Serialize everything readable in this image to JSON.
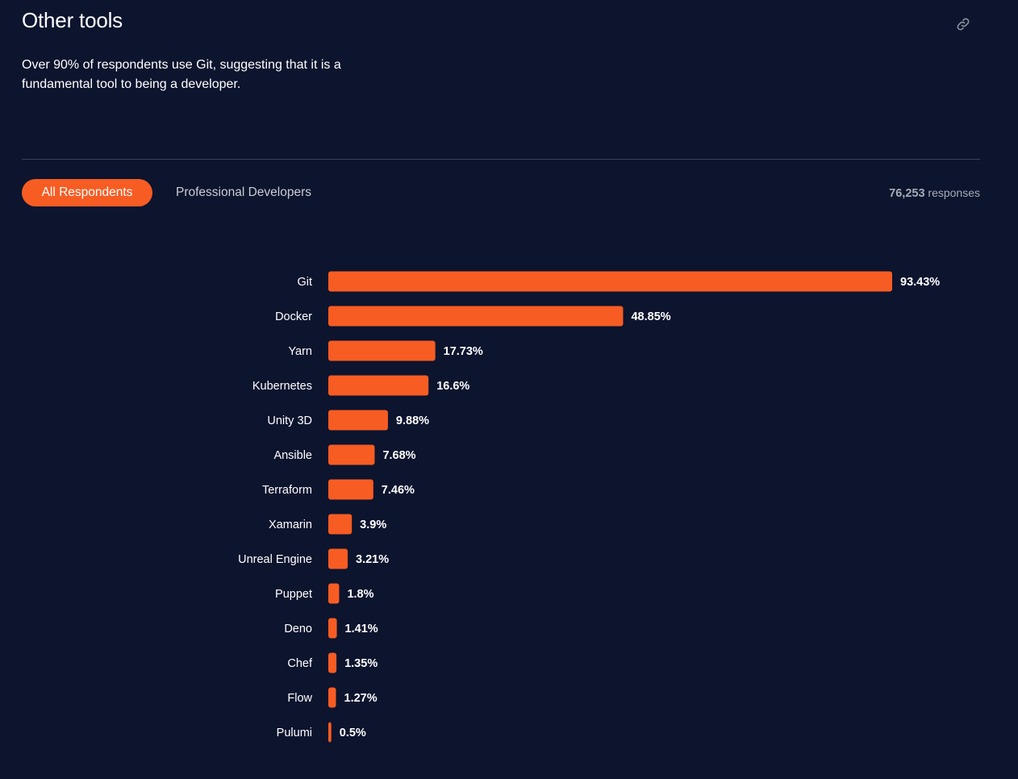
{
  "header": {
    "title": "Other tools",
    "description": "Over 90% of respondents use Git, suggesting that it is a fundamental tool to being a developer.",
    "link_icon": "link-icon"
  },
  "tabs": [
    {
      "label": "All Respondents",
      "active": true
    },
    {
      "label": "Professional Developers",
      "active": false
    }
  ],
  "responses": {
    "count": "76,253",
    "label": "responses"
  },
  "colors": {
    "bar": "#f75c23",
    "background": "#0d142e",
    "active_tab": "#f75c23"
  },
  "chart_data": {
    "type": "bar",
    "orientation": "horizontal",
    "categories": [
      "Git",
      "Docker",
      "Yarn",
      "Kubernetes",
      "Unity 3D",
      "Ansible",
      "Terraform",
      "Xamarin",
      "Unreal Engine",
      "Puppet",
      "Deno",
      "Chef",
      "Flow",
      "Pulumi"
    ],
    "values": [
      93.43,
      48.85,
      17.73,
      16.6,
      9.88,
      7.68,
      7.46,
      3.9,
      3.21,
      1.8,
      1.41,
      1.35,
      1.27,
      0.5
    ],
    "value_labels": [
      "93.43%",
      "48.85%",
      "17.73%",
      "16.6%",
      "9.88%",
      "7.68%",
      "7.46%",
      "3.9%",
      "3.21%",
      "1.8%",
      "1.41%",
      "1.35%",
      "1.27%",
      "0.5%"
    ],
    "title": "",
    "xlabel": "",
    "ylabel": "",
    "xlim": [
      0,
      100
    ],
    "grid": false,
    "legend": "none"
  }
}
